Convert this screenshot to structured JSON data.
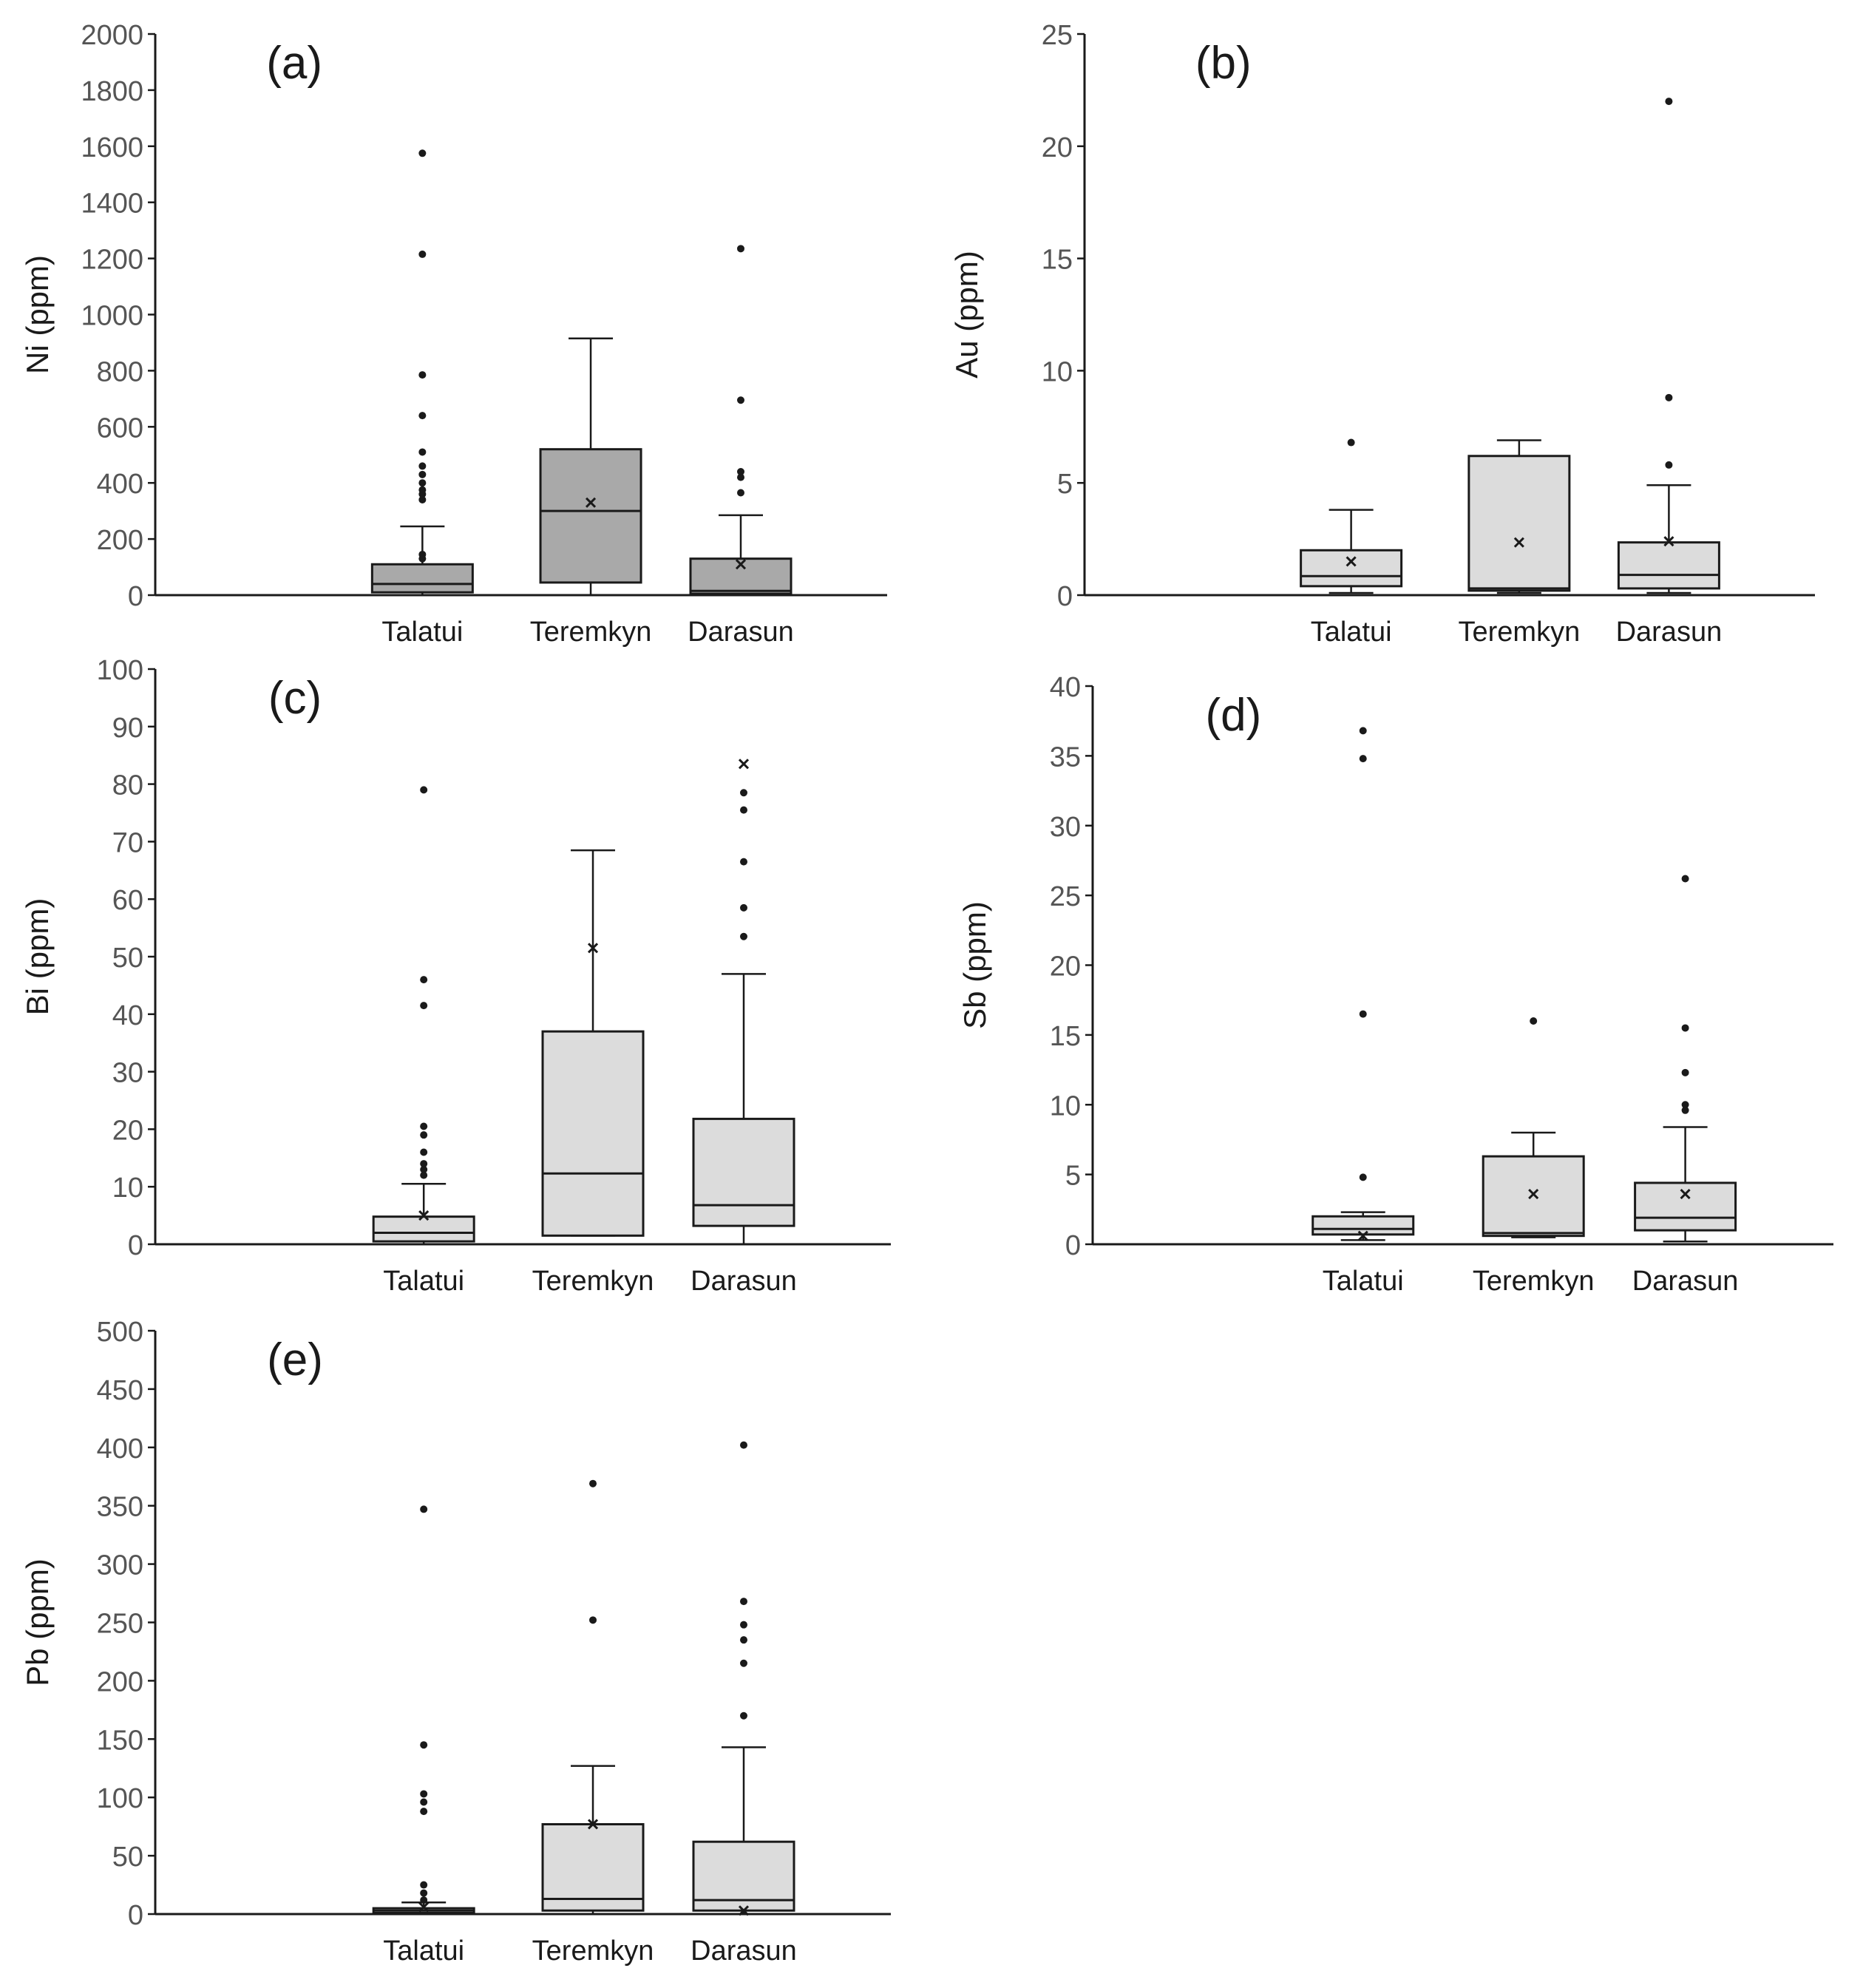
{
  "figure": {
    "style": {
      "box_fill": "#dcdcdc",
      "box_fill_dark": "#a9a9a9",
      "stroke": "#1a1a1a",
      "tick_text": "#555555"
    }
  },
  "chart_data": [
    {
      "id": "a",
      "type": "box",
      "panel_label": "(a)",
      "ylabel": "Ni (ppm)",
      "ylim": [
        0,
        2000
      ],
      "yticks": [
        0,
        200,
        400,
        600,
        800,
        1000,
        1200,
        1400,
        1600,
        1800,
        2000
      ],
      "categories": [
        "Talatui",
        "Teremkyn",
        "Darasun"
      ],
      "shade": "dark",
      "boxes": [
        {
          "category": "Talatui",
          "whislo": 0,
          "q1": 10,
          "med": 40,
          "q3": 110,
          "whishi": 245,
          "mean": null,
          "fliers": [
            130,
            145,
            340,
            360,
            375,
            400,
            430,
            460,
            510,
            640,
            785,
            1215,
            1575
          ]
        },
        {
          "category": "Teremkyn",
          "whislo": 0,
          "q1": 45,
          "med": 300,
          "q3": 520,
          "whishi": 915,
          "mean": 330,
          "fliers": []
        },
        {
          "category": "Darasun",
          "whislo": 0,
          "q1": 5,
          "med": 15,
          "q3": 130,
          "whishi": 285,
          "mean": 110,
          "fliers": [
            365,
            420,
            440,
            695,
            1235
          ]
        }
      ]
    },
    {
      "id": "b",
      "type": "box",
      "panel_label": "(b)",
      "ylabel": "Au (ppm)",
      "ylim": [
        0,
        25
      ],
      "yticks": [
        0,
        5,
        10,
        15,
        20,
        25
      ],
      "categories": [
        "Talatui",
        "Teremkyn",
        "Darasun"
      ],
      "shade": "light",
      "boxes": [
        {
          "category": "Talatui",
          "whislo": 0.1,
          "q1": 0.4,
          "med": 0.85,
          "q3": 2.0,
          "whishi": 3.8,
          "mean": 1.5,
          "fliers": [
            6.8
          ]
        },
        {
          "category": "Teremkyn",
          "whislo": 0.1,
          "q1": 0.2,
          "med": 0.3,
          "q3": 6.2,
          "whishi": 6.9,
          "mean": 2.35,
          "fliers": []
        },
        {
          "category": "Darasun",
          "whislo": 0.1,
          "q1": 0.3,
          "med": 0.9,
          "q3": 2.35,
          "whishi": 4.9,
          "mean": 2.4,
          "fliers": [
            5.8,
            8.8,
            22.0
          ]
        }
      ]
    },
    {
      "id": "c",
      "type": "box",
      "panel_label": "(c)",
      "ylabel": "Bi (ppm)",
      "ylim": [
        0,
        100
      ],
      "yticks": [
        0,
        10,
        20,
        30,
        40,
        50,
        60,
        70,
        80,
        90,
        100
      ],
      "categories": [
        "Talatui",
        "Teremkyn",
        "Darasun"
      ],
      "shade": "light",
      "boxes": [
        {
          "category": "Talatui",
          "whislo": 0,
          "q1": 0.5,
          "med": 2.0,
          "q3": 4.8,
          "whishi": 10.5,
          "mean": 5.0,
          "fliers": [
            12,
            13,
            14,
            16,
            19,
            20.5,
            41.5,
            46,
            79
          ]
        },
        {
          "category": "Teremkyn",
          "whislo": 1.5,
          "q1": 1.5,
          "med": 12.3,
          "q3": 37,
          "whishi": 68.5,
          "mean": 51.5,
          "fliers": []
        },
        {
          "category": "Darasun",
          "whislo": 0,
          "q1": 3.2,
          "med": 6.8,
          "q3": 21.8,
          "whishi": 47,
          "mean": 83.5,
          "fliers": [
            53.5,
            58.5,
            66.5,
            75.5,
            78.5
          ]
        }
      ]
    },
    {
      "id": "d",
      "type": "box",
      "panel_label": "(d)",
      "ylabel": "Sb (ppm)",
      "ylim": [
        0,
        40
      ],
      "yticks": [
        0,
        5,
        10,
        15,
        20,
        25,
        30,
        35,
        40
      ],
      "categories": [
        "Talatui",
        "Teremkyn",
        "Darasun"
      ],
      "shade": "light",
      "boxes": [
        {
          "category": "Talatui",
          "whislo": 0.3,
          "q1": 0.7,
          "med": 1.1,
          "q3": 2.0,
          "whishi": 2.3,
          "mean": 0.6,
          "fliers": [
            4.8,
            16.5,
            34.8,
            36.8
          ]
        },
        {
          "category": "Teremkyn",
          "whislo": 0.5,
          "q1": 0.6,
          "med": 0.8,
          "q3": 6.3,
          "whishi": 8.0,
          "mean": 3.6,
          "fliers": [
            16.0
          ]
        },
        {
          "category": "Darasun",
          "whislo": 0.2,
          "q1": 1.0,
          "med": 1.9,
          "q3": 4.4,
          "whishi": 8.4,
          "mean": 3.6,
          "fliers": [
            9.6,
            10.0,
            12.3,
            15.5,
            26.2
          ]
        }
      ]
    },
    {
      "id": "e",
      "type": "box",
      "panel_label": "(e)",
      "ylabel": "Pb (ppm)",
      "ylim": [
        0,
        500
      ],
      "yticks": [
        0,
        50,
        100,
        150,
        200,
        250,
        300,
        350,
        400,
        450,
        500
      ],
      "categories": [
        "Talatui",
        "Teremkyn",
        "Darasun"
      ],
      "shade": "light",
      "boxes": [
        {
          "category": "Talatui",
          "whislo": 0,
          "q1": 1,
          "med": 3,
          "q3": 5,
          "whishi": 10,
          "mean": 6,
          "fliers": [
            12,
            18,
            25,
            88,
            96,
            103,
            145,
            347
          ]
        },
        {
          "category": "Teremkyn",
          "whislo": 0,
          "q1": 3,
          "med": 13,
          "q3": 77,
          "whishi": 127,
          "mean": 77,
          "fliers": [
            252,
            369
          ]
        },
        {
          "category": "Darasun",
          "whislo": 0,
          "q1": 3,
          "med": 12,
          "q3": 62,
          "whishi": 143,
          "mean": 3,
          "fliers": [
            170,
            215,
            235,
            248,
            268,
            402
          ]
        }
      ]
    }
  ]
}
